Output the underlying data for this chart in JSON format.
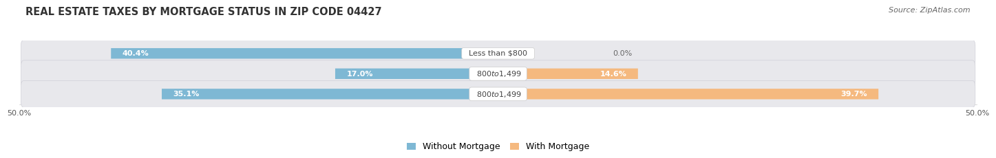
{
  "title": "REAL ESTATE TAXES BY MORTGAGE STATUS IN ZIP CODE 04427",
  "source": "Source: ZipAtlas.com",
  "rows": [
    {
      "label": "Less than $800",
      "without_mortgage": 40.4,
      "with_mortgage": 0.0
    },
    {
      "label": "$800 to $1,499",
      "without_mortgage": 17.0,
      "with_mortgage": 14.6
    },
    {
      "label": "$800 to $1,499",
      "without_mortgage": 35.1,
      "with_mortgage": 39.7
    }
  ],
  "xlim": [
    -50,
    50
  ],
  "xticks": [
    -50,
    50
  ],
  "xticklabels": [
    "50.0%",
    "50.0%"
  ],
  "color_without": "#7eb8d4",
  "color_with": "#f5b97f",
  "bar_height": 0.52,
  "row_bg_color": "#e8e8ec",
  "background_color": "#ffffff",
  "title_fontsize": 10.5,
  "source_fontsize": 8,
  "label_fontsize": 8,
  "pct_fontsize": 8,
  "legend_fontsize": 9
}
